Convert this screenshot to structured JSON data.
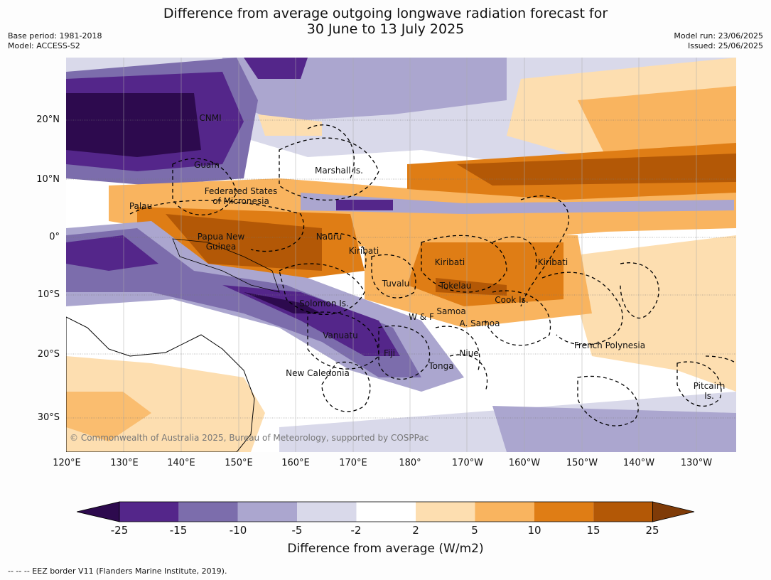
{
  "title": {
    "line1": "Difference from average outgoing longwave radiation forecast for",
    "line2": "30 June to 13 July 2025"
  },
  "meta": {
    "base_period": "Base period: 1981-2018",
    "model": "Model: ACCESS-S2",
    "model_run": "Model run: 23/06/2025",
    "issued": "Issued: 25/06/2025"
  },
  "axes": {
    "lat_ticks": [
      "20°N",
      "10°N",
      "0°",
      "10°S",
      "20°S",
      "30°S"
    ],
    "lon_ticks": [
      "120°E",
      "130°E",
      "140°E",
      "150°E",
      "160°E",
      "170°E",
      "180°",
      "170°W",
      "160°W",
      "150°W",
      "140°W",
      "130°W"
    ]
  },
  "region_labels": [
    "CNMI",
    "Guam",
    "Marshall Is.",
    "Federated States\nof Micronesia",
    "Palau",
    "Papua New\nGuinea",
    "Nauru",
    "Kiribati",
    "Kiribati",
    "Kiribati",
    "Tuvalu",
    "Tokelau",
    "Solomon Is.",
    "W & F",
    "Samoa",
    "A. Samoa",
    "Cook Is.",
    "Vanuatu",
    "Fiji",
    "Niue",
    "Tonga",
    "French Polynesia",
    "New Caledonia",
    "Pitcairn\nIs."
  ],
  "copyright": "© Commonwealth of Australia 2025, Bureau of Meteorology, supported by COSPPac",
  "colorbar": {
    "ticks": [
      "-25",
      "-15",
      "-10",
      "-5",
      "-2",
      "2",
      "5",
      "10",
      "15",
      "25"
    ],
    "colors": [
      "#2d0a4e",
      "#54268a",
      "#7c6dac",
      "#aba6cf",
      "#d9d9ea",
      "#ffffff",
      "#fddeb0",
      "#f9b45f",
      "#df7d15",
      "#b35806",
      "#7f3b08"
    ],
    "label": "Difference from average (W/m2)"
  },
  "footnote": "--  --  -- EEZ border V11 (Flanders Marine Institute, 2019)."
}
